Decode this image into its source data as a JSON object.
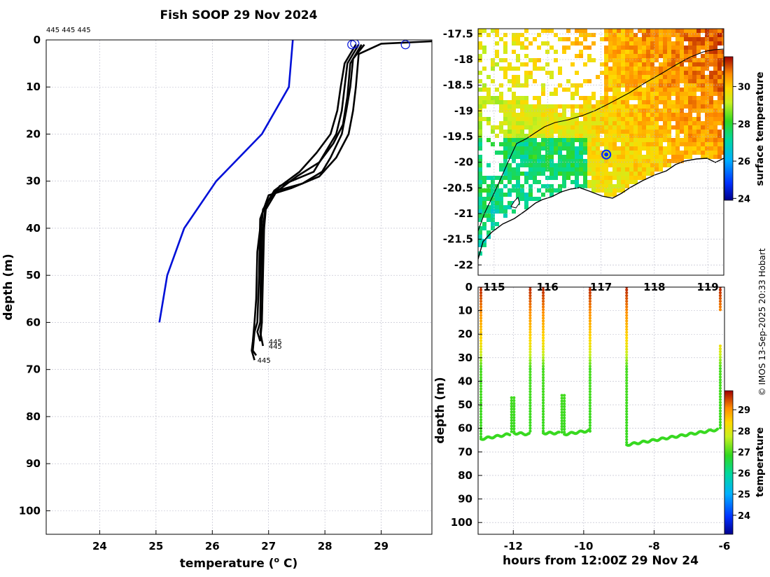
{
  "title": "Fish SOOP 29 Nov 2024",
  "credit": "© IMOS 13-Sep-2025 20:33 Hobart",
  "chart_data": [
    {
      "type": "line",
      "name": "temperature-profile",
      "xlabel": "temperature (",
      "xlabel_sup": "o",
      "xlabel_unit": " C)",
      "ylabel": "depth (m)",
      "xlim": [
        23.05,
        29.9
      ],
      "ylim": [
        0,
        105
      ],
      "xticks": [
        24,
        25,
        26,
        27,
        28,
        29
      ],
      "yticks": [
        0,
        10,
        20,
        30,
        40,
        50,
        60,
        70,
        80,
        90,
        100
      ],
      "top_label": "445 445 445",
      "end_labels": [
        {
          "text": "445",
          "t": 26.95,
          "d": 64
        },
        {
          "text": "445",
          "t": 26.95,
          "d": 65
        },
        {
          "text": "445",
          "t": 26.75,
          "d": 68
        }
      ],
      "markers": [
        {
          "t": 28.48,
          "d": 1
        },
        {
          "t": 28.53,
          "d": 0.8
        },
        {
          "t": 29.43,
          "d": 1
        }
      ],
      "series": [
        {
          "name": "climatology",
          "color": "#0010d8",
          "points": [
            [
              27.43,
              0
            ],
            [
              27.36,
              10
            ],
            [
              26.88,
              20
            ],
            [
              26.07,
              30
            ],
            [
              25.5,
              40
            ],
            [
              25.2,
              50
            ],
            [
              25.06,
              60
            ]
          ]
        },
        {
          "name": "profile-1",
          "color": "#000000",
          "points": [
            [
              28.55,
              1
            ],
            [
              28.35,
              5
            ],
            [
              28.28,
              10
            ],
            [
              28.22,
              15
            ],
            [
              28.1,
              20
            ],
            [
              27.85,
              24
            ],
            [
              27.55,
              28
            ],
            [
              27.1,
              32
            ],
            [
              26.9,
              36
            ],
            [
              26.87,
              40
            ],
            [
              26.86,
              50
            ],
            [
              26.85,
              60
            ],
            [
              26.8,
              62
            ],
            [
              26.85,
              64
            ]
          ]
        },
        {
          "name": "profile-2",
          "color": "#000000",
          "points": [
            [
              28.6,
              1
            ],
            [
              28.4,
              5
            ],
            [
              28.35,
              10
            ],
            [
              28.3,
              15
            ],
            [
              28.2,
              20
            ],
            [
              28.0,
              24
            ],
            [
              27.8,
              28
            ],
            [
              27.2,
              31
            ],
            [
              26.95,
              35
            ],
            [
              26.9,
              40
            ],
            [
              26.89,
              50
            ],
            [
              26.88,
              60
            ],
            [
              26.85,
              62
            ],
            [
              26.9,
              65
            ]
          ]
        },
        {
          "name": "profile-3",
          "color": "#000000",
          "points": [
            [
              28.7,
              1
            ],
            [
              28.5,
              4
            ],
            [
              28.45,
              10
            ],
            [
              28.38,
              15
            ],
            [
              28.3,
              20
            ],
            [
              28.1,
              25
            ],
            [
              27.95,
              28
            ],
            [
              27.6,
              30.5
            ],
            [
              27.15,
              32
            ],
            [
              26.95,
              36
            ],
            [
              26.92,
              40
            ],
            [
              26.9,
              50
            ],
            [
              26.88,
              60
            ],
            [
              26.85,
              64
            ]
          ]
        },
        {
          "name": "profile-4",
          "color": "#000000",
          "points": [
            [
              29.9,
              0.3
            ],
            [
              29.0,
              0.8
            ],
            [
              28.6,
              3
            ],
            [
              28.55,
              10
            ],
            [
              28.5,
              15
            ],
            [
              28.42,
              20
            ],
            [
              28.2,
              25
            ],
            [
              27.9,
              29
            ],
            [
              27.4,
              31.5
            ],
            [
              27.0,
              33
            ],
            [
              26.85,
              38
            ],
            [
              26.83,
              50
            ],
            [
              26.8,
              60
            ],
            [
              26.75,
              62
            ],
            [
              26.72,
              66
            ],
            [
              26.78,
              67
            ]
          ]
        },
        {
          "name": "profile-5",
          "color": "#000000",
          "points": [
            [
              28.65,
              1
            ],
            [
              28.45,
              5
            ],
            [
              28.4,
              12
            ],
            [
              28.32,
              18
            ],
            [
              28.15,
              22
            ],
            [
              27.9,
              26
            ],
            [
              27.5,
              29
            ],
            [
              27.05,
              33
            ],
            [
              26.88,
              37
            ],
            [
              26.8,
              45
            ],
            [
              26.78,
              55
            ],
            [
              26.75,
              60
            ],
            [
              26.72,
              64
            ],
            [
              26.7,
              66
            ],
            [
              26.75,
              68
            ]
          ]
        }
      ]
    },
    {
      "type": "heatmap",
      "name": "surface-temperature-map",
      "xlim": [
        114.7,
        119.3
      ],
      "ylim": [
        -22.2,
        -17.4
      ],
      "xticks": [
        115,
        116,
        117,
        118,
        119
      ],
      "yticks": [
        -17.5,
        -18,
        -18.5,
        -19,
        -19.5,
        -20,
        -20.5,
        -21,
        -21.5,
        -22
      ],
      "colorbar_label": "surface temperature",
      "colorbar_ticks": [
        24,
        26,
        28,
        30
      ],
      "colorbar_range": [
        23.9,
        31.6
      ],
      "profile_location": {
        "lon": 117.1,
        "lat": -19.85
      }
    },
    {
      "type": "scatter",
      "name": "depth-time-section",
      "xlabel": "hours from 12:00Z 29 Nov 24",
      "ylabel": "depth (m)",
      "xlim": [
        -13,
        -6
      ],
      "ylim": [
        0,
        105
      ],
      "xticks": [
        -12,
        -10,
        -8,
        -6
      ],
      "yticks": [
        0,
        10,
        20,
        30,
        40,
        50,
        60,
        70,
        80,
        90,
        100
      ],
      "colorbar_label": "temperature",
      "colorbar_ticks": [
        24,
        25,
        26,
        27,
        28,
        29
      ],
      "colorbar_range": [
        23.1,
        29.9
      ]
    }
  ]
}
